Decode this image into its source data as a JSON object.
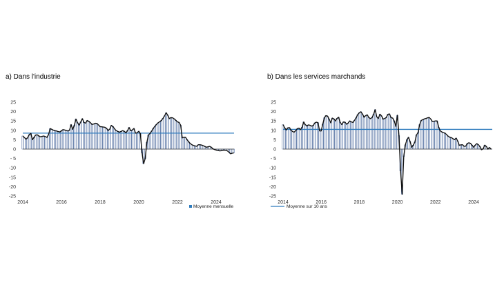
{
  "colors": {
    "bar": "#9db7df",
    "bar_edge": "#2c4f8c",
    "line": "#111111",
    "mean": "#2e7bbd",
    "zero": "#444444"
  },
  "chart_data": [
    {
      "type": "bar",
      "id": "industrie",
      "title": "a) Dans l'industrie",
      "ylim": [
        -25,
        25
      ],
      "yticks": [
        "25",
        "20",
        "15",
        "10",
        "5",
        "0",
        "- 5",
        "-10",
        "-15",
        "-20",
        "-25"
      ],
      "xticks": [
        "2014",
        "2016",
        "2018",
        "2020",
        "2022",
        "2024"
      ],
      "x_start": 2014.0,
      "x_end": 2024.9,
      "mean_value": 8.5,
      "legend": "Moyenne mensuelle",
      "anchors": [
        [
          2014.0,
          7
        ],
        [
          2014.2,
          5
        ],
        [
          2014.4,
          9
        ],
        [
          2014.5,
          5
        ],
        [
          2014.7,
          8
        ],
        [
          2014.9,
          6.5
        ],
        [
          2015.1,
          7
        ],
        [
          2015.3,
          6
        ],
        [
          2015.4,
          11
        ],
        [
          2015.6,
          10
        ],
        [
          2015.8,
          9.5
        ],
        [
          2015.9,
          9
        ],
        [
          2016.1,
          10.5
        ],
        [
          2016.2,
          10
        ],
        [
          2016.4,
          9.5
        ],
        [
          2016.5,
          13
        ],
        [
          2016.6,
          10
        ],
        [
          2016.75,
          16
        ],
        [
          2016.9,
          12.5
        ],
        [
          2017.1,
          16.5
        ],
        [
          2017.2,
          13
        ],
        [
          2017.35,
          15.5
        ],
        [
          2017.6,
          13
        ],
        [
          2017.8,
          14
        ],
        [
          2018.0,
          12
        ],
        [
          2018.3,
          11.5
        ],
        [
          2018.45,
          9.5
        ],
        [
          2018.6,
          13
        ],
        [
          2018.8,
          10
        ],
        [
          2019.0,
          9
        ],
        [
          2019.2,
          10
        ],
        [
          2019.35,
          8.5
        ],
        [
          2019.5,
          11.5
        ],
        [
          2019.6,
          9.5
        ],
        [
          2019.75,
          11
        ],
        [
          2019.85,
          8
        ],
        [
          2020.0,
          9.5
        ],
        [
          2020.1,
          8
        ],
        [
          2020.2,
          -7
        ],
        [
          2020.3,
          -8.5
        ],
        [
          2020.45,
          7
        ],
        [
          2020.6,
          8.5
        ],
        [
          2020.75,
          11
        ],
        [
          2020.9,
          13
        ],
        [
          2021.0,
          14
        ],
        [
          2021.15,
          15
        ],
        [
          2021.3,
          17
        ],
        [
          2021.45,
          20
        ],
        [
          2021.55,
          16
        ],
        [
          2021.7,
          17
        ],
        [
          2021.85,
          16
        ],
        [
          2022.0,
          14.5
        ],
        [
          2022.15,
          14
        ],
        [
          2022.25,
          6
        ],
        [
          2022.4,
          6.5
        ],
        [
          2022.5,
          5
        ],
        [
          2022.65,
          3
        ],
        [
          2022.8,
          2
        ],
        [
          2023.0,
          1.5
        ],
        [
          2023.1,
          2.5
        ],
        [
          2023.3,
          2
        ],
        [
          2023.5,
          1
        ],
        [
          2023.7,
          1.5
        ],
        [
          2023.85,
          0
        ],
        [
          2024.0,
          -0.5
        ],
        [
          2024.2,
          -1
        ],
        [
          2024.4,
          -0.5
        ],
        [
          2024.6,
          -1
        ],
        [
          2024.75,
          -2.5
        ],
        [
          2024.9,
          -2
        ]
      ]
    },
    {
      "type": "bar",
      "id": "services",
      "title": "b) Dans les services marchands",
      "ylim": [
        -25,
        25
      ],
      "yticks": [
        "25",
        "20",
        "15",
        "10",
        "5",
        "0",
        "- 5",
        "-10",
        "-15",
        "-20",
        "-25"
      ],
      "xticks": [
        "2014",
        "2016",
        "2018",
        "2020",
        "2022",
        "2024"
      ],
      "x_start": 2014.0,
      "x_end": 2024.9,
      "mean_value": 10.5,
      "legend": "Moyenne sur 10 ans",
      "anchors": [
        [
          2014.0,
          13
        ],
        [
          2014.15,
          10
        ],
        [
          2014.3,
          12
        ],
        [
          2014.45,
          9.5
        ],
        [
          2014.6,
          9
        ],
        [
          2014.8,
          11.5
        ],
        [
          2014.95,
          10
        ],
        [
          2015.1,
          15
        ],
        [
          2015.2,
          12
        ],
        [
          2015.35,
          13
        ],
        [
          2015.55,
          12
        ],
        [
          2015.7,
          14.5
        ],
        [
          2015.85,
          14
        ],
        [
          2015.95,
          7.5
        ],
        [
          2016.1,
          14
        ],
        [
          2016.2,
          18
        ],
        [
          2016.35,
          17.5
        ],
        [
          2016.5,
          14
        ],
        [
          2016.6,
          17
        ],
        [
          2016.75,
          15
        ],
        [
          2016.9,
          17.5
        ],
        [
          2017.05,
          12.5
        ],
        [
          2017.2,
          15
        ],
        [
          2017.35,
          13
        ],
        [
          2017.5,
          15
        ],
        [
          2017.65,
          14
        ],
        [
          2017.8,
          16
        ],
        [
          2017.95,
          19
        ],
        [
          2018.1,
          20
        ],
        [
          2018.25,
          17
        ],
        [
          2018.4,
          18.5
        ],
        [
          2018.55,
          16
        ],
        [
          2018.7,
          17
        ],
        [
          2018.85,
          21.5
        ],
        [
          2018.95,
          15
        ],
        [
          2019.1,
          19
        ],
        [
          2019.25,
          16
        ],
        [
          2019.4,
          16.5
        ],
        [
          2019.55,
          19.5
        ],
        [
          2019.7,
          16
        ],
        [
          2019.8,
          17
        ],
        [
          2019.9,
          11
        ],
        [
          2020.0,
          18
        ],
        [
          2020.1,
          5
        ],
        [
          2020.2,
          -20
        ],
        [
          2020.25,
          -24
        ],
        [
          2020.35,
          0
        ],
        [
          2020.5,
          5
        ],
        [
          2020.6,
          6.5
        ],
        [
          2020.75,
          1
        ],
        [
          2020.9,
          3
        ],
        [
          2021.0,
          7.5
        ],
        [
          2021.1,
          9
        ],
        [
          2021.2,
          15
        ],
        [
          2021.4,
          16
        ],
        [
          2021.55,
          16.5
        ],
        [
          2021.65,
          17
        ],
        [
          2021.75,
          16
        ],
        [
          2021.85,
          14.5
        ],
        [
          2021.95,
          15
        ],
        [
          2022.1,
          15
        ],
        [
          2022.2,
          10
        ],
        [
          2022.35,
          9
        ],
        [
          2022.5,
          8.5
        ],
        [
          2022.7,
          6.5
        ],
        [
          2022.85,
          6
        ],
        [
          2023.0,
          5
        ],
        [
          2023.1,
          6
        ],
        [
          2023.25,
          2
        ],
        [
          2023.4,
          2.5
        ],
        [
          2023.55,
          1
        ],
        [
          2023.7,
          3.5
        ],
        [
          2023.85,
          3
        ],
        [
          2024.0,
          1
        ],
        [
          2024.15,
          3
        ],
        [
          2024.3,
          2
        ],
        [
          2024.45,
          -1
        ],
        [
          2024.6,
          2.5
        ],
        [
          2024.75,
          0
        ],
        [
          2024.85,
          1
        ],
        [
          2024.9,
          0
        ]
      ]
    }
  ]
}
